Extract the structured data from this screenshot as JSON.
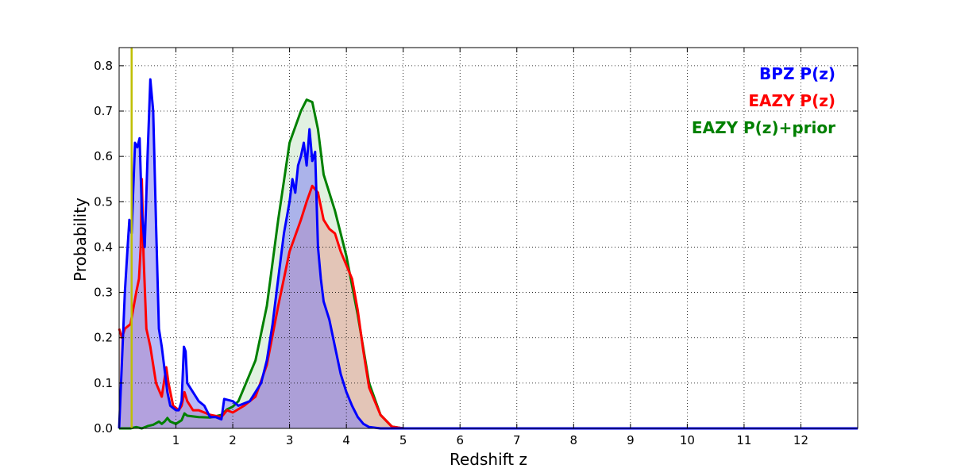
{
  "chart_data": {
    "type": "area",
    "xlabel": "Redshift z",
    "ylabel": "Probability",
    "xlim": [
      0,
      13
    ],
    "ylim": [
      0,
      0.84
    ],
    "xticks": [
      1,
      2,
      3,
      4,
      5,
      6,
      7,
      8,
      9,
      10,
      11,
      12
    ],
    "xtick_labels": [
      "1",
      "2",
      "3",
      "4",
      "5",
      "6",
      "7",
      "8",
      "9",
      "10",
      "11",
      "12"
    ],
    "yticks": [
      0.0,
      0.1,
      0.2,
      0.3,
      0.4,
      0.5,
      0.6,
      0.7,
      0.8
    ],
    "ytick_labels": [
      "0.0",
      "0.1",
      "0.2",
      "0.3",
      "0.4",
      "0.5",
      "0.6",
      "0.7",
      "0.8"
    ],
    "grid": true,
    "legend_position": "top-right",
    "vertical_line": {
      "x": 0.22,
      "color": "#bfbf00"
    },
    "series": [
      {
        "name": "EAZY P(z)+prior",
        "color": "#008000",
        "fill": "#c8e6c8",
        "points": [
          [
            0,
            0
          ],
          [
            0.2,
            0.0
          ],
          [
            0.3,
            0.003
          ],
          [
            0.4,
            0.0
          ],
          [
            0.5,
            0.005
          ],
          [
            0.6,
            0.008
          ],
          [
            0.7,
            0.015
          ],
          [
            0.75,
            0.01
          ],
          [
            0.8,
            0.015
          ],
          [
            0.85,
            0.023
          ],
          [
            0.9,
            0.015
          ],
          [
            1.0,
            0.01
          ],
          [
            1.1,
            0.018
          ],
          [
            1.15,
            0.033
          ],
          [
            1.2,
            0.028
          ],
          [
            1.4,
            0.025
          ],
          [
            1.6,
            0.024
          ],
          [
            1.8,
            0.03
          ],
          [
            1.9,
            0.042
          ],
          [
            2.0,
            0.048
          ],
          [
            2.1,
            0.06
          ],
          [
            2.2,
            0.09
          ],
          [
            2.4,
            0.15
          ],
          [
            2.6,
            0.27
          ],
          [
            2.8,
            0.46
          ],
          [
            3.0,
            0.63
          ],
          [
            3.2,
            0.7
          ],
          [
            3.3,
            0.725
          ],
          [
            3.4,
            0.72
          ],
          [
            3.5,
            0.66
          ],
          [
            3.6,
            0.56
          ],
          [
            3.8,
            0.48
          ],
          [
            4.0,
            0.38
          ],
          [
            4.2,
            0.25
          ],
          [
            4.4,
            0.1
          ],
          [
            4.6,
            0.03
          ],
          [
            4.8,
            0.004
          ],
          [
            5.0,
            0
          ],
          [
            13,
            0
          ]
        ]
      },
      {
        "name": "EAZY P(z)",
        "color": "#ff0000",
        "fill": "#e5a196",
        "points": [
          [
            0,
            0.22
          ],
          [
            0.05,
            0.2
          ],
          [
            0.1,
            0.22
          ],
          [
            0.2,
            0.23
          ],
          [
            0.3,
            0.3
          ],
          [
            0.35,
            0.33
          ],
          [
            0.38,
            0.4
          ],
          [
            0.4,
            0.55
          ],
          [
            0.43,
            0.38
          ],
          [
            0.48,
            0.22
          ],
          [
            0.55,
            0.18
          ],
          [
            0.65,
            0.1
          ],
          [
            0.75,
            0.07
          ],
          [
            0.8,
            0.11
          ],
          [
            0.83,
            0.135
          ],
          [
            0.87,
            0.1
          ],
          [
            0.95,
            0.05
          ],
          [
            1.05,
            0.04
          ],
          [
            1.1,
            0.05
          ],
          [
            1.15,
            0.08
          ],
          [
            1.2,
            0.06
          ],
          [
            1.3,
            0.04
          ],
          [
            1.4,
            0.04
          ],
          [
            1.6,
            0.03
          ],
          [
            1.8,
            0.025
          ],
          [
            1.9,
            0.04
          ],
          [
            2.0,
            0.035
          ],
          [
            2.2,
            0.05
          ],
          [
            2.4,
            0.07
          ],
          [
            2.6,
            0.14
          ],
          [
            2.8,
            0.27
          ],
          [
            3.0,
            0.39
          ],
          [
            3.2,
            0.46
          ],
          [
            3.3,
            0.5
          ],
          [
            3.4,
            0.535
          ],
          [
            3.5,
            0.52
          ],
          [
            3.6,
            0.46
          ],
          [
            3.7,
            0.44
          ],
          [
            3.8,
            0.43
          ],
          [
            3.9,
            0.39
          ],
          [
            4.0,
            0.36
          ],
          [
            4.1,
            0.33
          ],
          [
            4.2,
            0.26
          ],
          [
            4.3,
            0.17
          ],
          [
            4.4,
            0.09
          ],
          [
            4.6,
            0.03
          ],
          [
            4.8,
            0.004
          ],
          [
            5.0,
            0
          ],
          [
            13,
            0
          ]
        ]
      },
      {
        "name": "BPZ P(z)",
        "color": "#0000ff",
        "fill": "#7f7ff2",
        "points": [
          [
            0,
            0
          ],
          [
            0.05,
            0.15
          ],
          [
            0.1,
            0.3
          ],
          [
            0.15,
            0.4
          ],
          [
            0.18,
            0.46
          ],
          [
            0.22,
            0.43
          ],
          [
            0.28,
            0.63
          ],
          [
            0.32,
            0.62
          ],
          [
            0.36,
            0.64
          ],
          [
            0.4,
            0.48
          ],
          [
            0.45,
            0.4
          ],
          [
            0.5,
            0.6
          ],
          [
            0.55,
            0.77
          ],
          [
            0.6,
            0.7
          ],
          [
            0.65,
            0.45
          ],
          [
            0.7,
            0.22
          ],
          [
            0.75,
            0.18
          ],
          [
            0.8,
            0.13
          ],
          [
            0.85,
            0.08
          ],
          [
            0.9,
            0.05
          ],
          [
            1.0,
            0.04
          ],
          [
            1.05,
            0.04
          ],
          [
            1.1,
            0.06
          ],
          [
            1.14,
            0.18
          ],
          [
            1.17,
            0.17
          ],
          [
            1.2,
            0.1
          ],
          [
            1.3,
            0.08
          ],
          [
            1.4,
            0.06
          ],
          [
            1.5,
            0.05
          ],
          [
            1.6,
            0.025
          ],
          [
            1.7,
            0.025
          ],
          [
            1.8,
            0.02
          ],
          [
            1.85,
            0.065
          ],
          [
            2.0,
            0.06
          ],
          [
            2.1,
            0.05
          ],
          [
            2.3,
            0.06
          ],
          [
            2.5,
            0.1
          ],
          [
            2.6,
            0.15
          ],
          [
            2.7,
            0.23
          ],
          [
            2.8,
            0.33
          ],
          [
            2.9,
            0.43
          ],
          [
            3.0,
            0.5
          ],
          [
            3.05,
            0.55
          ],
          [
            3.1,
            0.52
          ],
          [
            3.15,
            0.58
          ],
          [
            3.2,
            0.6
          ],
          [
            3.25,
            0.63
          ],
          [
            3.3,
            0.58
          ],
          [
            3.35,
            0.66
          ],
          [
            3.4,
            0.59
          ],
          [
            3.45,
            0.61
          ],
          [
            3.5,
            0.4
          ],
          [
            3.55,
            0.33
          ],
          [
            3.6,
            0.28
          ],
          [
            3.7,
            0.24
          ],
          [
            3.8,
            0.18
          ],
          [
            3.9,
            0.12
          ],
          [
            4.0,
            0.08
          ],
          [
            4.1,
            0.05
          ],
          [
            4.2,
            0.025
          ],
          [
            4.3,
            0.01
          ],
          [
            4.4,
            0.003
          ],
          [
            4.6,
            0
          ],
          [
            13,
            0
          ]
        ]
      }
    ]
  }
}
